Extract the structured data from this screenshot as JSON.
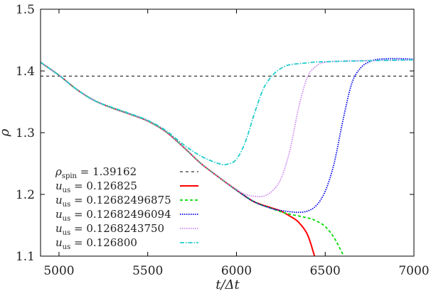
{
  "chart_data": {
    "type": "line",
    "xlabel": "t/Δt",
    "ylabel": "ρ",
    "xlim": [
      4896,
      7000
    ],
    "ylim": [
      1.1,
      1.5
    ],
    "xticks": [
      5000,
      5500,
      6000,
      6500,
      7000
    ],
    "yticks": [
      1.1,
      1.2,
      1.3,
      1.4,
      1.5
    ],
    "xtick_labels": [
      "5000",
      "5500",
      "6000",
      "6500",
      "7000"
    ],
    "ytick_labels": [
      "1.1",
      "1.2",
      "1.3",
      "1.4",
      "1.5"
    ],
    "grid": false,
    "legend_placement": "bottom-left",
    "reference_line": {
      "symbol": "ρ",
      "subscript": "spin",
      "value": "1.39162",
      "y": 1.39162,
      "color": "#000000",
      "style": "dashed"
    },
    "series": [
      {
        "symbol": "u",
        "subscript": "us",
        "value": "0.126825",
        "color": "#ff0000",
        "style": "solid",
        "x": [
          4896,
          5000,
          5100,
          5200,
          5300,
          5400,
          5500,
          5600,
          5700,
          5800,
          5900,
          6000,
          6100,
          6200,
          6250,
          6300,
          6350,
          6400,
          6440
        ],
        "y": [
          1.414,
          1.393,
          1.37,
          1.352,
          1.34,
          1.33,
          1.319,
          1.302,
          1.277,
          1.25,
          1.228,
          1.207,
          1.188,
          1.178,
          1.173,
          1.165,
          1.155,
          1.135,
          1.1
        ]
      },
      {
        "symbol": "u",
        "subscript": "us",
        "value": "0.12682496875",
        "color": "#00dd00",
        "style": "dashed",
        "x": [
          4896,
          5000,
          5100,
          5200,
          5300,
          5400,
          5500,
          5600,
          5700,
          5800,
          5900,
          6000,
          6100,
          6200,
          6250,
          6300,
          6400,
          6450,
          6500,
          6550,
          6605
        ],
        "y": [
          1.414,
          1.393,
          1.37,
          1.352,
          1.34,
          1.33,
          1.319,
          1.302,
          1.277,
          1.25,
          1.228,
          1.207,
          1.188,
          1.177,
          1.172,
          1.168,
          1.162,
          1.157,
          1.148,
          1.13,
          1.1
        ]
      },
      {
        "symbol": "u",
        "subscript": "us",
        "value": "0.12682496094",
        "color": "#0000ee",
        "style": "dotted",
        "x": [
          4896,
          5000,
          5100,
          5200,
          5300,
          5400,
          5500,
          5600,
          5700,
          5800,
          5900,
          6000,
          6100,
          6200,
          6250,
          6300,
          6350,
          6400,
          6450,
          6500,
          6550,
          6600,
          6650,
          6700,
          6750,
          6800,
          6900,
          7000
        ],
        "y": [
          1.414,
          1.393,
          1.37,
          1.352,
          1.34,
          1.33,
          1.319,
          1.302,
          1.277,
          1.25,
          1.228,
          1.207,
          1.188,
          1.177,
          1.174,
          1.172,
          1.171,
          1.173,
          1.182,
          1.205,
          1.25,
          1.32,
          1.38,
          1.405,
          1.415,
          1.419,
          1.42,
          1.419
        ]
      },
      {
        "symbol": "u",
        "subscript": "us",
        "value": "0.1268243750",
        "color": "#cc88ee",
        "style": "dotted",
        "x": [
          4896,
          5000,
          5100,
          5200,
          5300,
          5400,
          5500,
          5600,
          5700,
          5800,
          5900,
          6000,
          6050,
          6100,
          6150,
          6200,
          6250,
          6300,
          6350,
          6400,
          6450,
          6500,
          6600,
          7000
        ],
        "y": [
          1.414,
          1.393,
          1.37,
          1.352,
          1.34,
          1.33,
          1.319,
          1.302,
          1.277,
          1.25,
          1.228,
          1.208,
          1.2,
          1.197,
          1.197,
          1.205,
          1.225,
          1.27,
          1.34,
          1.39,
          1.408,
          1.414,
          1.416,
          1.418
        ]
      },
      {
        "symbol": "u",
        "subscript": "us",
        "value": "0.126800",
        "color": "#22cccc",
        "style": "dashdot",
        "x": [
          4896,
          5000,
          5100,
          5200,
          5300,
          5400,
          5500,
          5600,
          5700,
          5800,
          5900,
          5950,
          6000,
          6050,
          6100,
          6150,
          6200,
          6250,
          6300,
          6400,
          6500,
          7000
        ],
        "y": [
          1.414,
          1.393,
          1.37,
          1.352,
          1.341,
          1.331,
          1.32,
          1.304,
          1.281,
          1.262,
          1.25,
          1.249,
          1.257,
          1.285,
          1.33,
          1.37,
          1.392,
          1.404,
          1.41,
          1.413,
          1.415,
          1.418
        ]
      }
    ]
  }
}
